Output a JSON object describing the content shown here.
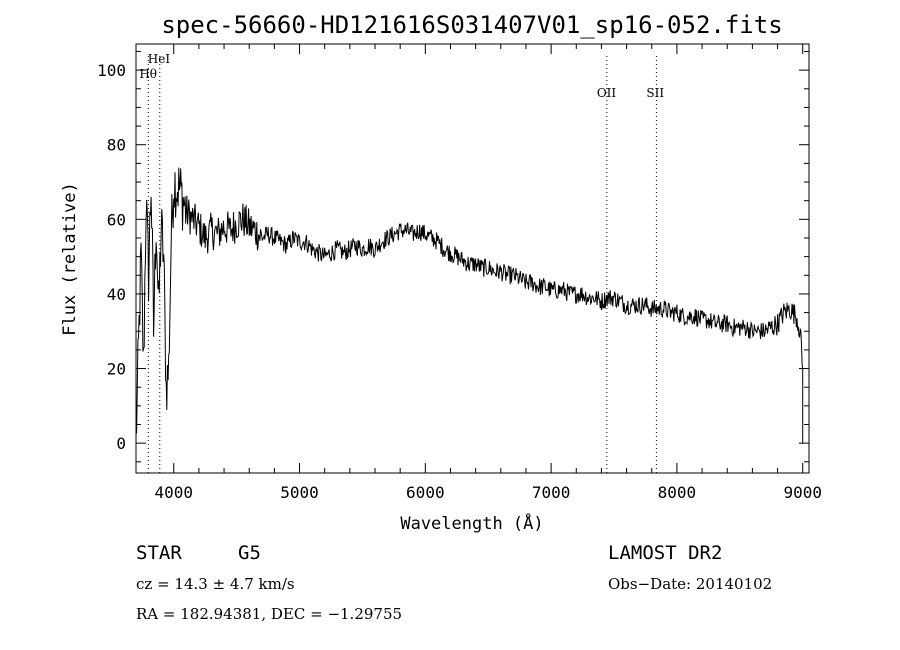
{
  "chart_data": {
    "type": "line",
    "title": "spec-56660-HD121616S031407V01_sp16-052.fits",
    "xlabel": "Wavelength (Å)",
    "ylabel": "Flux (relative)",
    "xlim": [
      3700,
      9050
    ],
    "ylim": [
      -8,
      107
    ],
    "xticks": [
      4000,
      5000,
      6000,
      7000,
      8000,
      9000
    ],
    "yticks": [
      0,
      20,
      40,
      60,
      80,
      100
    ],
    "grid": false,
    "series": [
      {
        "x": [
          3700,
          3720,
          3740,
          3760,
          3780,
          3800,
          3820,
          3840,
          3860,
          3880,
          3900,
          3920,
          3940,
          3960,
          3980,
          4000,
          4050,
          4100,
          4150,
          4200,
          4250,
          4300,
          4350,
          4400,
          4450,
          4500,
          4550,
          4600,
          4650,
          4700,
          4750,
          4800,
          4850,
          4900,
          4950,
          5000,
          5050,
          5100,
          5150,
          5200,
          5250,
          5300,
          5350,
          5400,
          5450,
          5500,
          5550,
          5600,
          5650,
          5700,
          5750,
          5800,
          5850,
          5900,
          5950,
          6000,
          6050,
          6100,
          6150,
          6200,
          6250,
          6300,
          6350,
          6400,
          6450,
          6500,
          6550,
          6600,
          6650,
          6700,
          6750,
          6800,
          6850,
          6900,
          6950,
          7000,
          7050,
          7100,
          7150,
          7200,
          7250,
          7300,
          7350,
          7400,
          7450,
          7500,
          7550,
          7600,
          7650,
          7700,
          7750,
          7800,
          7850,
          7900,
          7950,
          8000,
          8050,
          8100,
          8150,
          8200,
          8250,
          8300,
          8350,
          8400,
          8450,
          8500,
          8550,
          8600,
          8650,
          8700,
          8750,
          8800,
          8850,
          8900,
          8950,
          8980,
          9000
        ],
        "y": [
          0,
          25,
          50,
          20,
          65,
          45,
          70,
          30,
          60,
          35,
          58,
          50,
          15,
          20,
          55,
          70,
          68,
          62,
          60,
          58,
          55,
          57,
          56,
          58,
          57,
          59,
          60,
          58,
          57,
          55,
          56,
          55,
          54,
          53,
          55,
          54,
          54,
          52,
          51,
          50,
          51,
          52,
          51,
          52,
          53,
          52,
          53,
          52,
          54,
          55,
          56,
          57,
          57,
          56,
          57,
          56,
          55,
          54,
          52,
          51,
          50,
          49,
          48,
          48,
          47,
          47,
          46,
          46,
          45,
          45,
          44,
          43,
          43,
          42,
          42,
          41,
          41,
          41,
          40,
          40,
          40,
          39,
          39,
          38,
          39,
          39,
          38,
          37,
          37,
          37,
          37,
          36,
          36,
          36,
          35,
          35,
          34,
          34,
          34,
          33,
          33,
          32,
          32,
          32,
          31,
          31,
          31,
          30,
          30,
          30,
          31,
          32,
          35,
          36,
          34,
          30,
          20
        ]
      }
    ],
    "line_labels": [
      {
        "text": "HeI",
        "x": 3889
      },
      {
        "text": "Hθ",
        "x": 3798
      },
      {
        "text": "OII",
        "x": 7443
      },
      {
        "text": "SII",
        "x": 7837
      }
    ]
  },
  "info": {
    "object_class": "STAR",
    "subclass": "G5",
    "cz": "cz = 14.3 ± 4.7 km/s",
    "coords": "RA = 182.94381, DEC =  −1.29755",
    "survey": "LAMOST DR2",
    "obs_date": "Obs−Date: 20140102"
  }
}
